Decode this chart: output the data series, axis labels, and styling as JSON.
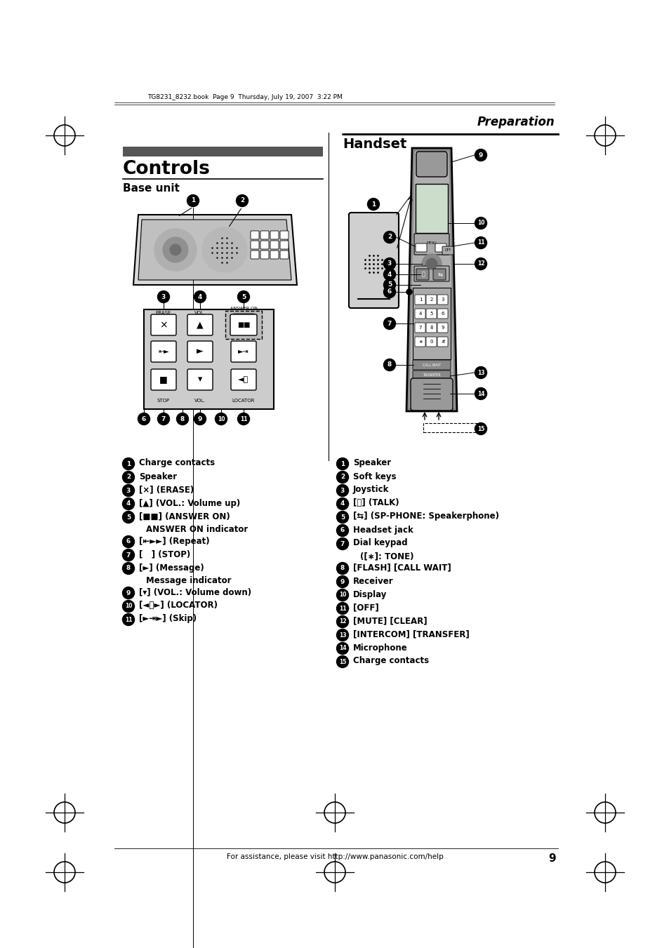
{
  "bg_color": "#ffffff",
  "page_header_text": "TG8231_8232.book  Page 9  Thursday, July 19, 2007  3:22 PM",
  "section_title_italic": "Preparation",
  "main_title": "Controls",
  "base_unit_subtitle": "Base unit",
  "handset_subtitle": "Handset",
  "footer_text": "For assistance, please visit http://www.panasonic.com/help",
  "footer_page_num": "9",
  "base_list": [
    [
      "1",
      "Charge contacts",
      ""
    ],
    [
      "2",
      "Speaker",
      ""
    ],
    [
      "3",
      "[×] (ERASE)",
      ""
    ],
    [
      "4",
      "[▲] (VOL.: Volume up)",
      ""
    ],
    [
      "5",
      "[■■] (ANSWER ON)",
      "ANSWER ON indicator"
    ],
    [
      "6",
      "[⇤►►] (Repeat)",
      ""
    ],
    [
      "7",
      "[   ] (STOP)",
      ""
    ],
    [
      "8",
      "[►] (Message)",
      "Message indicator"
    ],
    [
      "9",
      "[▾] (VOL.: Volume down)",
      ""
    ],
    [
      "10",
      "[◄⧗►] (LOCATOR)",
      ""
    ],
    [
      "11",
      "[►⇥►] (Skip)",
      ""
    ]
  ],
  "handset_list": [
    [
      "1",
      "Speaker",
      ""
    ],
    [
      "2",
      "Soft keys",
      ""
    ],
    [
      "3",
      "Joystick",
      ""
    ],
    [
      "4",
      "[⤵] (TALK)",
      ""
    ],
    [
      "5",
      "[⇆] (SP-PHONE: Speakerphone)",
      ""
    ],
    [
      "6",
      "Headset jack",
      ""
    ],
    [
      "7",
      "Dial keypad",
      "([∗]: TONE)"
    ],
    [
      "8",
      "[FLASH] [CALL WAIT]",
      ""
    ],
    [
      "9",
      "Receiver",
      ""
    ],
    [
      "10",
      "Display",
      ""
    ],
    [
      "11",
      "[OFF]",
      ""
    ],
    [
      "12",
      "[MUTE] [CLEAR]",
      ""
    ],
    [
      "13",
      "[INTERCOM] [TRANSFER]",
      ""
    ],
    [
      "14",
      "Microphone",
      ""
    ],
    [
      "15",
      "Charge contacts",
      ""
    ]
  ]
}
